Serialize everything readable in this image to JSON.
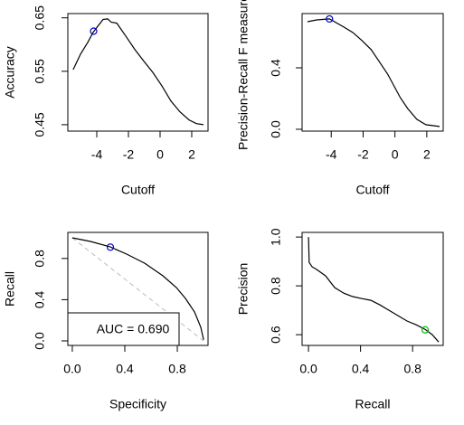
{
  "chart_data": [
    {
      "type": "line",
      "x_label": "Cutoff",
      "y_label": "Accuracy",
      "x": [
        -5.49,
        -5.03,
        -4.57,
        -4.23,
        -3.89,
        -3.6,
        -3.31,
        -3.09,
        -2.74,
        -2.17,
        -1.6,
        -1.03,
        -0.46,
        0.11,
        0.69,
        1.26,
        1.83,
        2.29,
        2.74
      ],
      "values": [
        0.553,
        0.582,
        0.604,
        0.623,
        0.636,
        0.647,
        0.648,
        0.642,
        0.64,
        0.616,
        0.591,
        0.569,
        0.548,
        0.523,
        0.494,
        0.474,
        0.459,
        0.452,
        0.45
      ],
      "color": "#000000",
      "marker": {
        "x": -4.2,
        "y": 0.625,
        "color": "#0000cc"
      },
      "xlim": [
        -5.83,
        3.03
      ],
      "ylim": [
        0.438,
        0.658
      ],
      "xticks": [
        -4,
        -2,
        0,
        2
      ],
      "yticks": [
        0.45,
        0.55,
        0.65
      ]
    },
    {
      "type": "line",
      "x_label": "Cutoff",
      "y_label": "Precision-Recall F measure",
      "x": [
        -5.49,
        -4.91,
        -4.11,
        -3.2,
        -2.63,
        -2.06,
        -1.49,
        -0.91,
        -0.46,
        -0.06,
        0.34,
        0.8,
        1.37,
        1.94,
        2.8
      ],
      "values": [
        0.7,
        0.712,
        0.718,
        0.665,
        0.629,
        0.576,
        0.518,
        0.429,
        0.359,
        0.282,
        0.206,
        0.135,
        0.065,
        0.03,
        0.018
      ],
      "color": "#000000",
      "marker": {
        "x": -4.11,
        "y": 0.718,
        "color": "#0000cc"
      },
      "xlim": [
        -5.83,
        3.03
      ],
      "ylim": [
        -0.012,
        0.753
      ],
      "xticks": [
        -4,
        -2,
        0,
        2
      ],
      "yticks": [
        {
          "value": 0,
          "label": "0.0"
        },
        0.4
      ]
    },
    {
      "type": "line",
      "x_label": "Specificity",
      "y_label": "Recall",
      "x": [
        0,
        0.138,
        0.29,
        0.414,
        0.552,
        0.69,
        0.793,
        0.862,
        0.931,
        0.979,
        1.0
      ],
      "values": [
        1.0,
        0.965,
        0.912,
        0.842,
        0.754,
        0.632,
        0.518,
        0.412,
        0.281,
        0.132,
        0.01
      ],
      "color": "#000000",
      "marker": {
        "x": 0.29,
        "y": 0.91,
        "color": "#0000cc"
      },
      "reference": {
        "x": [
          0,
          1
        ],
        "values": [
          1,
          0
        ],
        "color": "#bbbbbb"
      },
      "legend": "AUC = 0.690",
      "xlim": [
        -0.034,
        1.034
      ],
      "ylim": [
        -0.044,
        1.053
      ],
      "xticks": [
        {
          "value": 0,
          "label": "0.0"
        },
        0.4,
        0.8
      ],
      "yticks": [
        {
          "value": 0,
          "label": "0.0"
        },
        0.4,
        0.8
      ]
    },
    {
      "type": "line",
      "x_label": "Recall",
      "y_label": "Precision",
      "x": [
        0,
        0.005,
        0.028,
        0.063,
        0.132,
        0.201,
        0.271,
        0.34,
        0.41,
        0.479,
        0.549,
        0.618,
        0.688,
        0.757,
        0.826,
        0.896,
        0.951,
        1.0
      ],
      "values": [
        1.0,
        0.896,
        0.878,
        0.867,
        0.841,
        0.793,
        0.77,
        0.756,
        0.748,
        0.741,
        0.722,
        0.7,
        0.678,
        0.656,
        0.641,
        0.622,
        0.6,
        0.57
      ],
      "color": "#000000",
      "marker": {
        "x": 0.896,
        "y": 0.62,
        "color": "#00bb00"
      },
      "xlim": [
        -0.049,
        1.035
      ],
      "ylim": [
        0.556,
        1.019
      ],
      "xticks": [
        {
          "value": 0,
          "label": "0.0"
        },
        0.4,
        0.8
      ],
      "yticks": [
        {
          "value": 0.6,
          "label": "0.6"
        },
        {
          "value": 0.8,
          "label": "0.8"
        },
        {
          "value": 1,
          "label": "1.0"
        }
      ]
    }
  ]
}
